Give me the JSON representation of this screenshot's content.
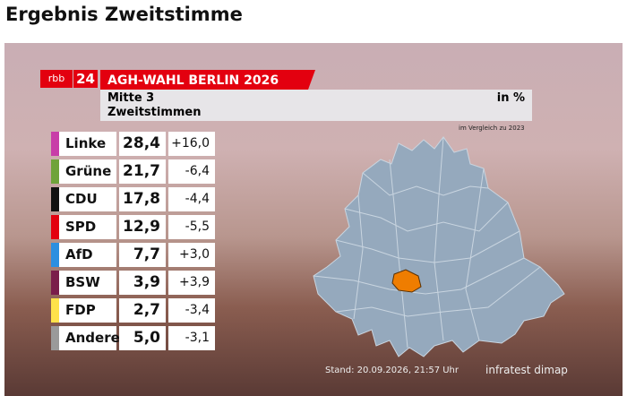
{
  "header": {
    "title": "Ergebnis Zweitstimme"
  },
  "graphic": {
    "brand": "rbb",
    "channel": "24",
    "title": "AGH-WAHL BERLIN 2026",
    "district": "Mitte 3",
    "unit": "in %",
    "ballot": "Zweitstimmen",
    "comparison": "im Vergleich zu 2023",
    "table": {
      "rows": [
        {
          "party": "Linke",
          "color": "#c83ea8",
          "share": "28,4",
          "change": "+16,0"
        },
        {
          "party": "Grüne",
          "color": "#6fa33a",
          "share": "21,7",
          "change": "-6,4"
        },
        {
          "party": "CDU",
          "color": "#111111",
          "share": "17,8",
          "change": "-4,4"
        },
        {
          "party": "SPD",
          "color": "#e3000f",
          "share": "12,9",
          "change": "-5,5"
        },
        {
          "party": "AfD",
          "color": "#2c8fe0",
          "share": "7,7",
          "change": "+3,0"
        },
        {
          "party": "BSW",
          "color": "#7a1e4a",
          "share": "3,9",
          "change": "+3,9"
        },
        {
          "party": "FDP",
          "color": "#ffe24a",
          "share": "2,7",
          "change": "-3,4"
        },
        {
          "party": "Andere",
          "color": "#9a9a9a",
          "share": "5,0",
          "change": "-3,1"
        }
      ]
    },
    "footer": {
      "timestamp": "Stand: 20.09.2026, 21:57 Uhr",
      "source": "infratest dimap"
    }
  }
}
